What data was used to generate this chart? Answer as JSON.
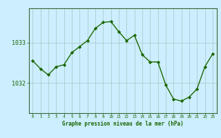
{
  "hours": [
    0,
    1,
    2,
    3,
    4,
    5,
    6,
    7,
    8,
    9,
    10,
    11,
    12,
    13,
    14,
    15,
    16,
    17,
    18,
    19,
    20,
    21,
    22,
    23
  ],
  "pressure": [
    1032.55,
    1032.35,
    1032.2,
    1032.4,
    1032.45,
    1032.75,
    1032.9,
    1033.05,
    1033.35,
    1033.5,
    1033.52,
    1033.27,
    1033.05,
    1033.18,
    1032.7,
    1032.52,
    1032.52,
    1031.95,
    1031.6,
    1031.55,
    1031.65,
    1031.85,
    1032.4,
    1032.72
  ],
  "line_color": "#1a6600",
  "marker_color": "#1a6600",
  "bg_color": "#cceeff",
  "grid_color_v": "#aacccc",
  "grid_color_h": "#aacccc",
  "axis_color": "#336633",
  "xlabel": "Graphe pression niveau de la mer (hPa)",
  "ytick_labels": [
    "1032",
    "1033"
  ],
  "ytick_values": [
    1032.0,
    1033.0
  ],
  "ylim": [
    1031.25,
    1033.85
  ],
  "xlim": [
    -0.5,
    23.5
  ],
  "font_color": "#1a6600"
}
